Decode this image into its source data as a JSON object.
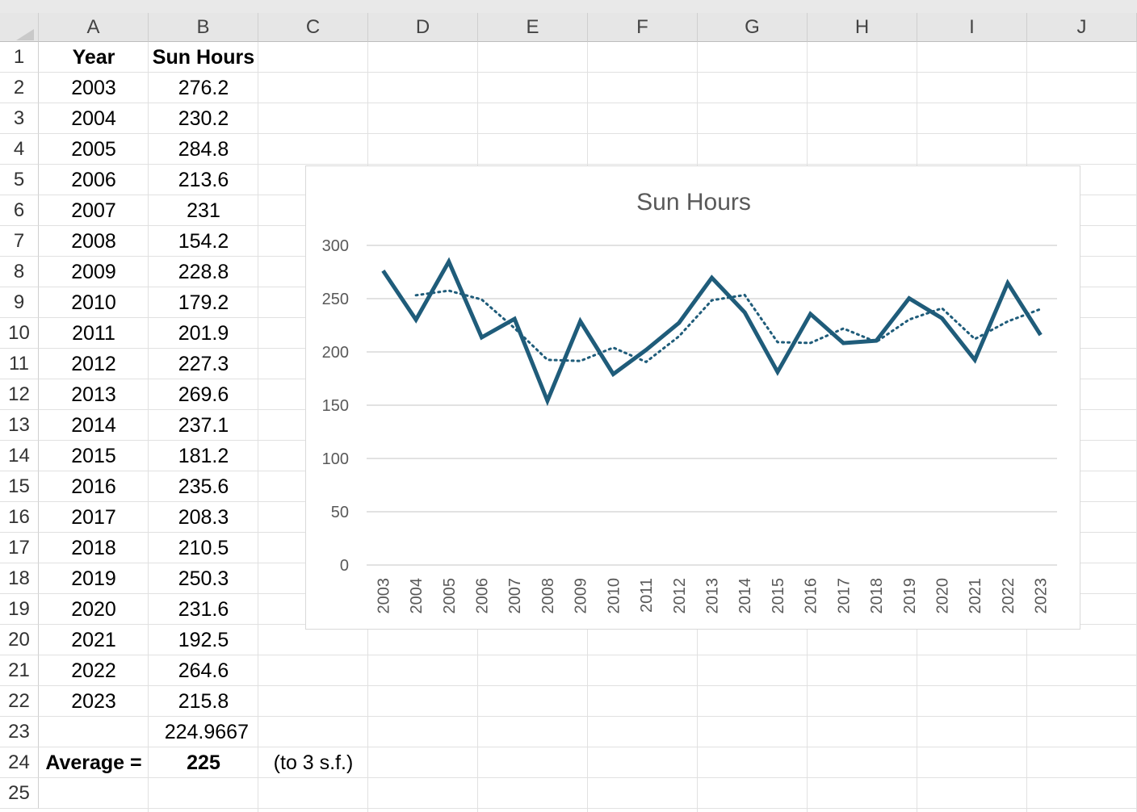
{
  "columns": [
    "A",
    "B",
    "C",
    "D",
    "E",
    "F",
    "G",
    "H",
    "I",
    "J"
  ],
  "rows": [
    "1",
    "2",
    "3",
    "4",
    "5",
    "6",
    "7",
    "8",
    "9",
    "10",
    "11",
    "12",
    "13",
    "14",
    "15",
    "16",
    "17",
    "18",
    "19",
    "20",
    "21",
    "22",
    "23",
    "24",
    "25"
  ],
  "headers": {
    "year": "Year",
    "sun_hours": "Sun Hours"
  },
  "table": [
    {
      "year": "2003",
      "hours": "276.2"
    },
    {
      "year": "2004",
      "hours": "230.2"
    },
    {
      "year": "2005",
      "hours": "284.8"
    },
    {
      "year": "2006",
      "hours": "213.6"
    },
    {
      "year": "2007",
      "hours": "231"
    },
    {
      "year": "2008",
      "hours": "154.2"
    },
    {
      "year": "2009",
      "hours": "228.8"
    },
    {
      "year": "2010",
      "hours": "179.2"
    },
    {
      "year": "2011",
      "hours": "201.9"
    },
    {
      "year": "2012",
      "hours": "227.3"
    },
    {
      "year": "2013",
      "hours": "269.6"
    },
    {
      "year": "2014",
      "hours": "237.1"
    },
    {
      "year": "2015",
      "hours": "181.2"
    },
    {
      "year": "2016",
      "hours": "235.6"
    },
    {
      "year": "2017",
      "hours": "208.3"
    },
    {
      "year": "2018",
      "hours": "210.5"
    },
    {
      "year": "2019",
      "hours": "250.3"
    },
    {
      "year": "2020",
      "hours": "231.6"
    },
    {
      "year": "2021",
      "hours": "192.5"
    },
    {
      "year": "2022",
      "hours": "264.6"
    },
    {
      "year": "2023",
      "hours": "215.8"
    }
  ],
  "average": {
    "raw": "224.9667",
    "label": "Average =",
    "rounded": "225",
    "note": "(to 3 s.f.)"
  },
  "colors": {
    "series": "#1f5c7a",
    "grid": "#d9d9d9",
    "axis_text": "#595959"
  },
  "chart_data": {
    "type": "line",
    "title": "Sun Hours",
    "categories": [
      "2003",
      "2004",
      "2005",
      "2006",
      "2007",
      "2008",
      "2009",
      "2010",
      "2011",
      "2012",
      "2013",
      "2014",
      "2015",
      "2016",
      "2017",
      "2018",
      "2019",
      "2020",
      "2021",
      "2022",
      "2023"
    ],
    "series": [
      {
        "values": [
          276.2,
          230.2,
          284.8,
          213.6,
          231,
          154.2,
          228.8,
          179.2,
          201.9,
          227.3,
          269.6,
          237.1,
          181.2,
          235.6,
          208.3,
          210.5,
          250.3,
          231.6,
          192.5,
          264.6,
          215.8
        ],
        "style": "solid"
      },
      {
        "values": [
          null,
          253.2,
          257.5,
          249.2,
          222.3,
          192.6,
          191.5,
          204,
          190.6,
          214.6,
          248.5,
          253.4,
          209.2,
          208.4,
          222,
          209.4,
          230.4,
          241,
          212.1,
          228.6,
          240.2
        ],
        "style": "dotted",
        "trendline": "2-period moving average"
      }
    ],
    "ylim": [
      0,
      300
    ],
    "yticks": [
      "0",
      "50",
      "100",
      "150",
      "200",
      "250",
      "300"
    ],
    "grid": true,
    "legend": "none"
  }
}
